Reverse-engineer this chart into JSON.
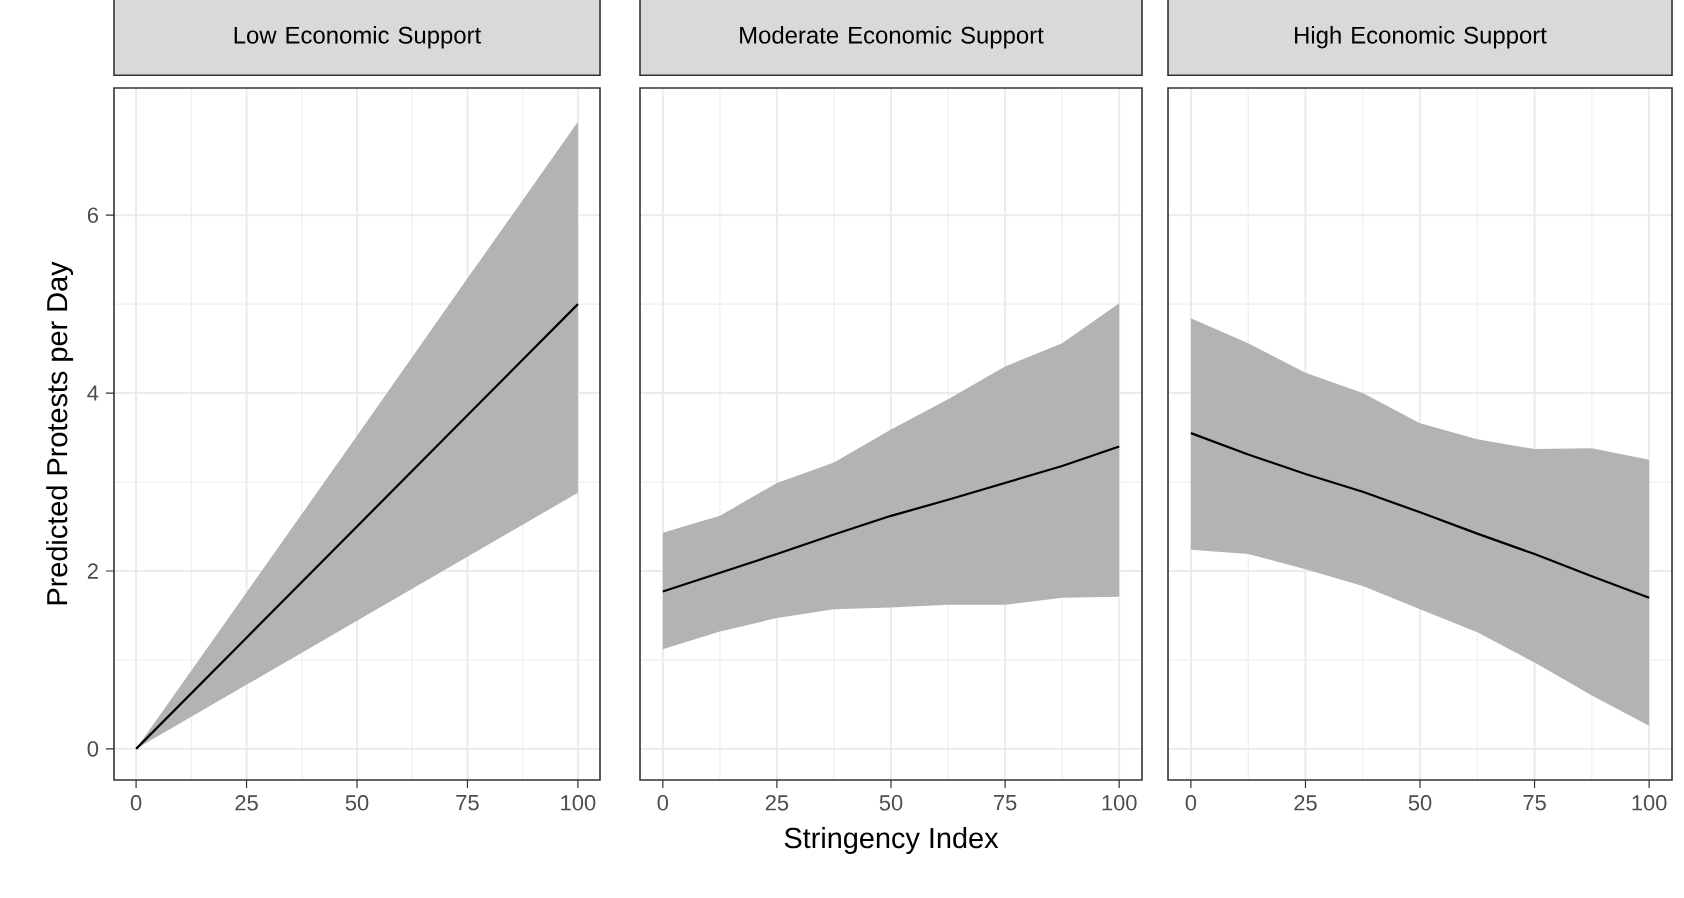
{
  "chart_data": [
    {
      "type": "line",
      "title": "Low Economic Support",
      "ylabel": "Predicted Protests per Day",
      "xlim": [
        -5,
        105
      ],
      "ylim": [
        -0.35,
        7.43
      ],
      "xticks": [
        0,
        25,
        50,
        75,
        100
      ],
      "yticks": [
        0,
        2,
        4,
        6
      ],
      "grid": true,
      "series": [
        {
          "color": "#000000",
          "x": [
            0,
            25,
            50,
            75,
            100
          ],
          "values": [
            0,
            1.25,
            2.5,
            3.75,
            5.0
          ],
          "lower": [
            0,
            0.72,
            1.44,
            2.16,
            2.88
          ],
          "upper": [
            0,
            1.76,
            3.52,
            5.29,
            7.05
          ]
        }
      ]
    },
    {
      "type": "line",
      "title": "Moderate Economic Support",
      "xlabel": "Stringency Index",
      "xlim": [
        -5,
        105
      ],
      "ylim": [
        -0.35,
        7.43
      ],
      "xticks": [
        0,
        25,
        50,
        75,
        100
      ],
      "yticks": [
        0,
        2,
        4,
        6
      ],
      "grid": true,
      "tick_labels": "x",
      "series": [
        {
          "color": "#000000",
          "x": [
            0,
            12.5,
            25,
            37.5,
            50,
            62.5,
            75,
            87.5,
            100
          ],
          "values": [
            1.77,
            1.98,
            2.19,
            2.41,
            2.62,
            2.8,
            2.99,
            3.18,
            3.4
          ],
          "lower": [
            1.12,
            1.32,
            1.47,
            1.57,
            1.59,
            1.62,
            1.62,
            1.7,
            1.71
          ],
          "upper": [
            2.43,
            2.62,
            2.99,
            3.22,
            3.59,
            3.93,
            4.3,
            4.56,
            5.01
          ]
        }
      ]
    },
    {
      "type": "line",
      "title": "High Economic Support",
      "xlim": [
        -5,
        105
      ],
      "ylim": [
        -0.35,
        7.43
      ],
      "xticks": [
        0,
        25,
        50,
        75,
        100
      ],
      "yticks": [
        0,
        2,
        4,
        6
      ],
      "grid": true,
      "tick_labels": "x",
      "series": [
        {
          "color": "#000000",
          "x": [
            0,
            12.5,
            25,
            37.5,
            50,
            62.5,
            75,
            87.5,
            100
          ],
          "values": [
            3.55,
            3.31,
            3.09,
            2.89,
            2.66,
            2.42,
            2.19,
            1.94,
            1.7
          ],
          "lower": [
            2.24,
            2.19,
            2.02,
            1.83,
            1.57,
            1.31,
            0.97,
            0.6,
            0.26
          ],
          "upper": [
            4.84,
            4.56,
            4.23,
            4.0,
            3.66,
            3.48,
            3.37,
            3.38,
            3.25
          ]
        }
      ]
    }
  ]
}
